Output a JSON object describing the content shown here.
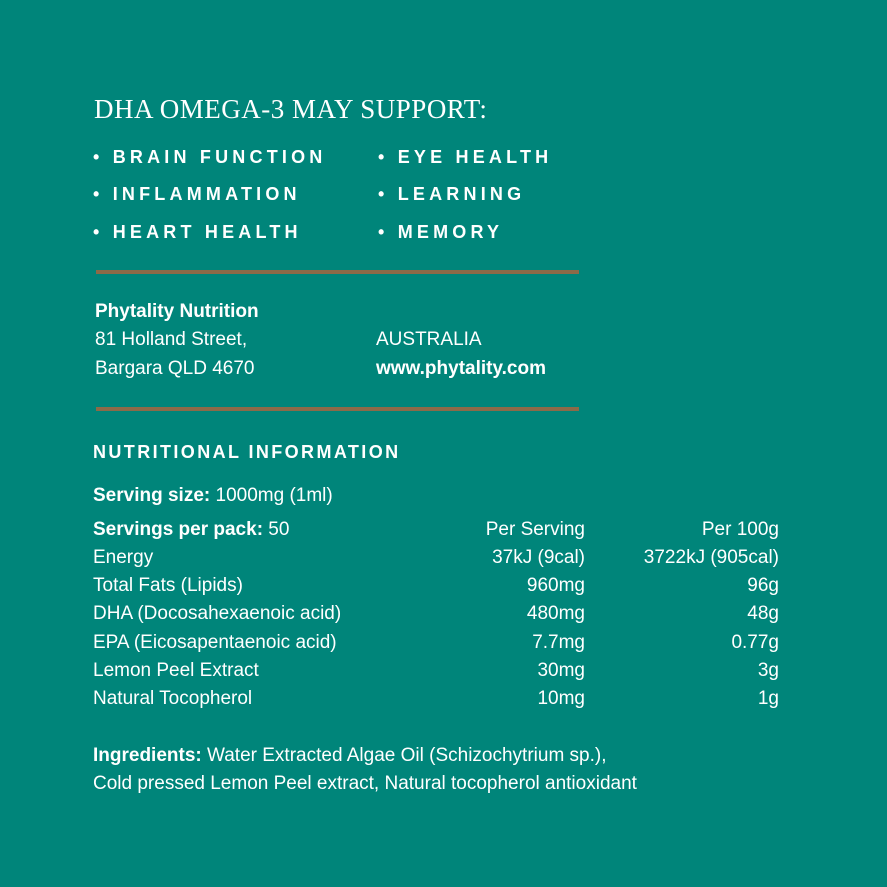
{
  "title": "DHA OMEGA-3 MAY SUPPORT:",
  "benefits": [
    "BRAIN FUNCTION",
    "EYE HEALTH",
    "INFLAMMATION",
    "LEARNING",
    "HEART HEALTH",
    "MEMORY"
  ],
  "address": {
    "company": "Phytality Nutrition",
    "street": "81 Holland Street,",
    "city": "Bargara QLD 4670",
    "country": "AUSTRALIA",
    "website": "www.phytality.com"
  },
  "nutrition": {
    "heading": "NUTRITIONAL INFORMATION",
    "serving_size_label": "Serving size:",
    "serving_size": " 1000mg (1ml)",
    "servings_label": "Servings per pack:",
    "servings": " 50",
    "col_per_serving": "Per Serving",
    "col_per_100g": "Per 100g",
    "rows": [
      {
        "name": "Energy",
        "per_serving": "37kJ (9cal)",
        "per_100g": "3722kJ (905cal)"
      },
      {
        "name": "Total Fats (Lipids)",
        "per_serving": "960mg",
        "per_100g": "96g"
      },
      {
        "name": "DHA (Docosahexaenoic acid)",
        "per_serving": "480mg",
        "per_100g": "48g"
      },
      {
        "name": "EPA (Eicosapentaenoic acid)",
        "per_serving": "7.7mg",
        "per_100g": "0.77g"
      },
      {
        "name": "Lemon Peel Extract",
        "per_serving": "30mg",
        "per_100g": "3g"
      },
      {
        "name": "Natural Tocopherol",
        "per_serving": "10mg",
        "per_100g": "1g"
      }
    ]
  },
  "ingredients": {
    "label": "Ingredients:",
    "line1": " Water Extracted Algae Oil (Schizochytrium sp.),",
    "line2": "Cold pressed Lemon Peel extract, Natural tocopherol antioxidant"
  },
  "colors": {
    "background": "#00857a",
    "rule": "#8c6a48"
  }
}
